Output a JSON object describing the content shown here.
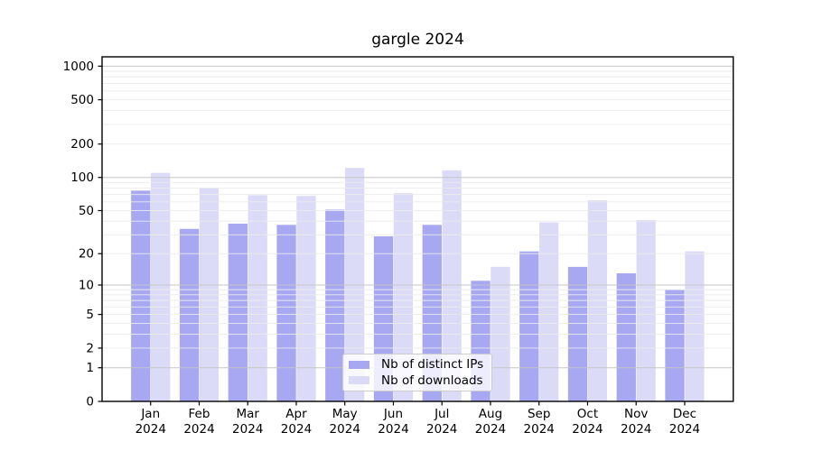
{
  "chart_data": {
    "type": "bar",
    "title": "gargle 2024",
    "categories": [
      "Jan 2024",
      "Feb 2024",
      "Mar 2024",
      "Apr 2024",
      "May 2024",
      "Jun 2024",
      "Jul 2024",
      "Aug 2024",
      "Sep 2024",
      "Oct 2024",
      "Nov 2024",
      "Dec 2024"
    ],
    "series": [
      {
        "name": "Nb of distinct IPs",
        "color": "#a7a7f2",
        "values": [
          76,
          34,
          38,
          37,
          51,
          29,
          37,
          11,
          21,
          15,
          13,
          9
        ]
      },
      {
        "name": "Nb of downloads",
        "color": "#dbdbf8",
        "values": [
          110,
          81,
          69,
          68,
          122,
          72,
          116,
          15,
          39,
          62,
          41,
          21
        ]
      }
    ],
    "xlabel": "",
    "ylabel": "",
    "yscale": "log1p",
    "yticks": [
      0,
      1,
      2,
      5,
      10,
      20,
      50,
      100,
      200,
      500,
      1000
    ],
    "ylim": [
      0,
      1212
    ],
    "grid": "horizontal",
    "legend_position": "inside-bottom-center"
  },
  "colors": {
    "background": "#ffffff",
    "frame": "#000000",
    "grid_major": "#c6c6c6",
    "grid_minor": "#ebebeb",
    "text": "#000000",
    "legend_border": "#cccccc",
    "legend_background": "rgba(255,255,255,0.8)"
  }
}
